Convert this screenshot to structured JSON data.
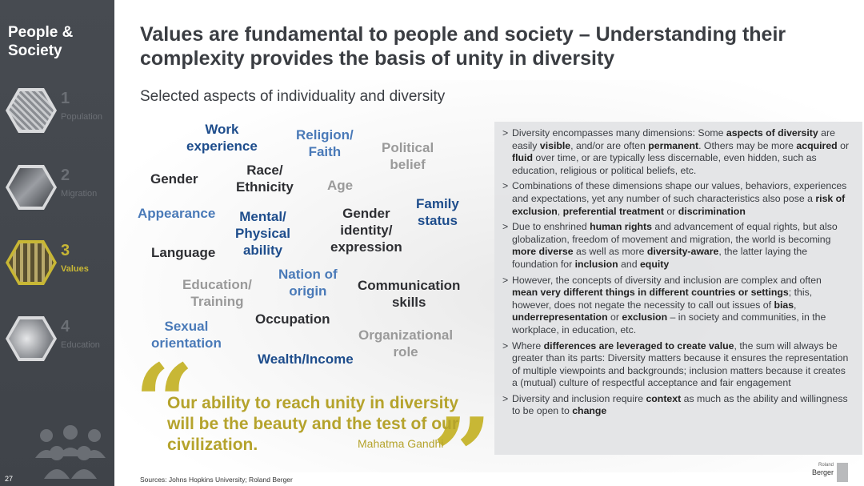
{
  "sidebar": {
    "title": "People & Society",
    "items": [
      {
        "num": "1",
        "label": "Population",
        "active": false
      },
      {
        "num": "2",
        "label": "Migration",
        "active": false
      },
      {
        "num": "3",
        "label": "Values",
        "active": true
      },
      {
        "num": "4",
        "label": "Education",
        "active": false
      }
    ],
    "page_number": "27"
  },
  "header": {
    "title": "Values are fundamental to people and society – Understanding their complexity provides the basis of unity in diversity",
    "subtitle": "Selected aspects of individuality and diversity"
  },
  "aspects": [
    {
      "text": "Work\nexperience",
      "color": "navy"
    },
    {
      "text": "Religion/\nFaith",
      "color": "blue"
    },
    {
      "text": "Political\nbelief",
      "color": "grey"
    },
    {
      "text": "Gender",
      "color": "dark"
    },
    {
      "text": "Race/\nEthnicity",
      "color": "dark"
    },
    {
      "text": "Age",
      "color": "grey"
    },
    {
      "text": "Family\nstatus",
      "color": "navy"
    },
    {
      "text": "Appearance",
      "color": "blue"
    },
    {
      "text": "Mental/\nPhysical\nability",
      "color": "navy"
    },
    {
      "text": "Gender\nidentity/\nexpression",
      "color": "dark"
    },
    {
      "text": "Language",
      "color": "dark"
    },
    {
      "text": "Nation of\norigin",
      "color": "blue"
    },
    {
      "text": "Education/\nTraining",
      "color": "grey"
    },
    {
      "text": "Communication\nskills",
      "color": "dark"
    },
    {
      "text": "Occupation",
      "color": "dark"
    },
    {
      "text": "Sexual\norientation",
      "color": "blue"
    },
    {
      "text": "Organizational\nrole",
      "color": "grey"
    },
    {
      "text": "Wealth/Income",
      "color": "navy"
    }
  ],
  "quote": {
    "text": "Our ability to reach unity in diversity will be the beauty and the test of our civilization.",
    "author": "Mahatma Gandhi"
  },
  "bullets": [
    [
      {
        "t": "Diversity encompasses many dimensions: Some "
      },
      {
        "t": "aspects of diversity",
        "b": true
      },
      {
        "t": " are easily "
      },
      {
        "t": "visible",
        "b": true
      },
      {
        "t": ", and/or are often "
      },
      {
        "t": "permanent",
        "b": true
      },
      {
        "t": ". Others may be more "
      },
      {
        "t": "acquired",
        "b": true
      },
      {
        "t": " or "
      },
      {
        "t": "fluid",
        "b": true
      },
      {
        "t": " over time, or are typically less discernable, even hidden, such as education, religious or political beliefs, etc."
      }
    ],
    [
      {
        "t": "Combinations of these dimensions shape our values, behaviors, experiences and expectations, yet any number of such characteristics also pose a "
      },
      {
        "t": "risk of exclusion",
        "b": true
      },
      {
        "t": ", "
      },
      {
        "t": "preferential treatment",
        "b": true
      },
      {
        "t": " or "
      },
      {
        "t": "discrimination",
        "b": true
      }
    ],
    [
      {
        "t": "Due to enshrined "
      },
      {
        "t": "human rights",
        "b": true
      },
      {
        "t": " and advancement of equal rights, but also globalization, freedom of movement and migration, the world is becoming "
      },
      {
        "t": "more diverse",
        "b": true
      },
      {
        "t": " as well as more "
      },
      {
        "t": "diversity-aware",
        "b": true
      },
      {
        "t": ", the latter laying the foundation for "
      },
      {
        "t": "inclusion",
        "b": true
      },
      {
        "t": " and "
      },
      {
        "t": "equity",
        "b": true
      }
    ],
    [
      {
        "t": "However, the concepts of diversity and inclusion are complex and often "
      },
      {
        "t": "mean very different things in different countries or settings",
        "b": true
      },
      {
        "t": "; this, however, does not negate the necessity to call out issues of "
      },
      {
        "t": "bias",
        "b": true
      },
      {
        "t": ", "
      },
      {
        "t": "underrepresentation",
        "b": true
      },
      {
        "t": " or "
      },
      {
        "t": "exclusion",
        "b": true
      },
      {
        "t": " – in society and communities, in the workplace, in education, etc."
      }
    ],
    [
      {
        "t": "Where "
      },
      {
        "t": "differences are leveraged to create value",
        "b": true
      },
      {
        "t": ", the sum will always be greater than its parts: Diversity matters because it ensures the representation of multiple viewpoints and backgrounds; inclusion matters because it creates a (mutual) culture of respectful acceptance and fair engagement"
      }
    ],
    [
      {
        "t": "Diversity and inclusion require "
      },
      {
        "t": "context",
        "b": true
      },
      {
        "t": " as much as the ability and willingness to be open to "
      },
      {
        "t": "change",
        "b": true
      }
    ]
  ],
  "bullet_marker": ">",
  "sources": "Sources: Johns Hopkins University; Roland Berger",
  "logo": {
    "small": "Roland",
    "main": "Berger"
  },
  "colors": {
    "sidebar": "#474b51",
    "accent": "#c8b735",
    "navy": "#1e4d8c",
    "blue": "#4a7ab8",
    "grey": "#9a9a9a",
    "dark": "#2e2f33"
  }
}
